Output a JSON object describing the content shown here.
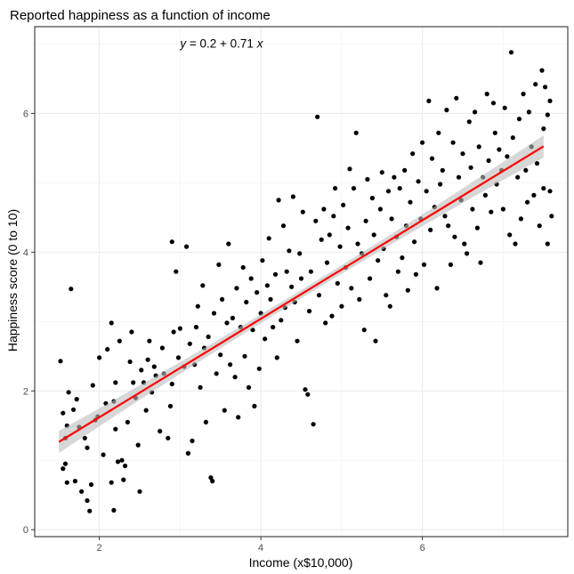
{
  "chart_data": {
    "type": "scatter",
    "title": "Reported happiness as a function of income",
    "xlabel": "Income (x$10,000)",
    "ylabel": "Happiness score (0 to 10)",
    "xlim": [
      1.2,
      7.8
    ],
    "ylim": [
      -0.1,
      7.25
    ],
    "x_ticks": [
      2,
      4,
      6
    ],
    "y_ticks": [
      0,
      2,
      4,
      6
    ],
    "x_tick_labels": [
      "2",
      "4",
      "6"
    ],
    "y_tick_labels": [
      "0",
      "2",
      "4",
      "6"
    ],
    "grid": true,
    "annotation": {
      "var_y": "y",
      "equals": " = 0.2 + 0.71 ",
      "var_x": "x",
      "x": 3.0,
      "y": 6.95
    },
    "regression": {
      "intercept": 0.2,
      "slope": 0.71,
      "x_range": [
        1.5,
        7.5
      ],
      "ci_halfwidth_ends": 0.16,
      "ci_halfwidth_center": 0.06,
      "line_color": "#ff0000",
      "band_color": "#bdbdbd"
    },
    "point_color": "#000000",
    "points": [
      [
        1.52,
        2.43
      ],
      [
        1.55,
        1.68
      ],
      [
        1.58,
        1.32
      ],
      [
        1.6,
        1.5
      ],
      [
        1.62,
        1.98
      ],
      [
        1.65,
        3.47
      ],
      [
        1.58,
        0.95
      ],
      [
        1.55,
        0.88
      ],
      [
        1.6,
        0.68
      ],
      [
        1.68,
        1.73
      ],
      [
        1.7,
        0.7
      ],
      [
        1.72,
        1.88
      ],
      [
        1.75,
        1.48
      ],
      [
        1.78,
        0.55
      ],
      [
        1.82,
        1.32
      ],
      [
        1.85,
        0.42
      ],
      [
        1.88,
        0.27
      ],
      [
        1.9,
        0.65
      ],
      [
        1.85,
        1.18
      ],
      [
        1.92,
        2.08
      ],
      [
        1.95,
        1.58
      ],
      [
        1.98,
        1.63
      ],
      [
        2.0,
        2.48
      ],
      [
        2.05,
        1.08
      ],
      [
        2.08,
        1.82
      ],
      [
        2.1,
        2.6
      ],
      [
        2.15,
        2.98
      ],
      [
        2.18,
        1.85
      ],
      [
        2.2,
        2.12
      ],
      [
        2.15,
        0.68
      ],
      [
        2.18,
        0.28
      ],
      [
        2.2,
        1.45
      ],
      [
        2.23,
        0.98
      ],
      [
        2.25,
        2.72
      ],
      [
        2.28,
        1.0
      ],
      [
        2.3,
        0.72
      ],
      [
        2.32,
        0.92
      ],
      [
        2.35,
        1.55
      ],
      [
        2.38,
        2.42
      ],
      [
        2.4,
        2.85
      ],
      [
        2.42,
        2.12
      ],
      [
        2.45,
        1.9
      ],
      [
        2.48,
        1.22
      ],
      [
        2.5,
        0.55
      ],
      [
        2.52,
        2.3
      ],
      [
        2.55,
        2.12
      ],
      [
        2.58,
        1.72
      ],
      [
        2.6,
        2.45
      ],
      [
        2.62,
        2.72
      ],
      [
        2.65,
        1.98
      ],
      [
        2.68,
        2.35
      ],
      [
        2.7,
        2.22
      ],
      [
        2.75,
        1.42
      ],
      [
        2.78,
        2.62
      ],
      [
        2.8,
        2.25
      ],
      [
        2.85,
        1.32
      ],
      [
        2.88,
        1.78
      ],
      [
        2.9,
        2.1
      ],
      [
        2.9,
        4.15
      ],
      [
        2.92,
        2.85
      ],
      [
        2.95,
        3.72
      ],
      [
        2.98,
        2.48
      ],
      [
        3.0,
        2.9
      ],
      [
        3.05,
        2.35
      ],
      [
        3.08,
        4.08
      ],
      [
        3.1,
        1.1
      ],
      [
        3.12,
        2.68
      ],
      [
        3.15,
        1.28
      ],
      [
        3.18,
        2.38
      ],
      [
        3.2,
        2.92
      ],
      [
        3.22,
        3.22
      ],
      [
        3.25,
        2.05
      ],
      [
        3.28,
        3.52
      ],
      [
        3.3,
        2.62
      ],
      [
        3.32,
        1.55
      ],
      [
        3.35,
        2.78
      ],
      [
        3.38,
        0.75
      ],
      [
        3.4,
        0.7
      ],
      [
        3.42,
        3.12
      ],
      [
        3.45,
        2.25
      ],
      [
        3.48,
        3.82
      ],
      [
        3.5,
        2.52
      ],
      [
        3.52,
        3.32
      ],
      [
        3.55,
        1.72
      ],
      [
        3.58,
        2.98
      ],
      [
        3.6,
        4.12
      ],
      [
        3.62,
        2.38
      ],
      [
        3.65,
        3.05
      ],
      [
        3.68,
        2.2
      ],
      [
        3.7,
        3.48
      ],
      [
        3.72,
        1.62
      ],
      [
        3.75,
        2.92
      ],
      [
        3.78,
        3.78
      ],
      [
        3.8,
        2.5
      ],
      [
        3.82,
        3.28
      ],
      [
        3.85,
        2.05
      ],
      [
        3.88,
        3.62
      ],
      [
        3.9,
        2.88
      ],
      [
        3.92,
        1.78
      ],
      [
        3.95,
        3.42
      ],
      [
        3.98,
        2.32
      ],
      [
        4.0,
        3.12
      ],
      [
        4.02,
        3.88
      ],
      [
        4.05,
        2.75
      ],
      [
        4.08,
        3.52
      ],
      [
        4.1,
        4.2
      ],
      [
        4.12,
        3.32
      ],
      [
        4.15,
        2.92
      ],
      [
        4.18,
        3.68
      ],
      [
        4.2,
        2.48
      ],
      [
        4.22,
        4.75
      ],
      [
        4.25,
        3.02
      ],
      [
        4.28,
        4.38
      ],
      [
        4.3,
        3.2
      ],
      [
        4.32,
        3.72
      ],
      [
        4.35,
        4.02
      ],
      [
        4.38,
        3.5
      ],
      [
        4.4,
        4.8
      ],
      [
        4.42,
        3.28
      ],
      [
        4.45,
        2.72
      ],
      [
        4.48,
        3.98
      ],
      [
        4.5,
        3.62
      ],
      [
        4.52,
        4.58
      ],
      [
        4.55,
        2.02
      ],
      [
        4.58,
        1.95
      ],
      [
        4.6,
        3.15
      ],
      [
        4.62,
        3.72
      ],
      [
        4.65,
        1.52
      ],
      [
        4.68,
        4.45
      ],
      [
        4.7,
        5.95
      ],
      [
        4.72,
        3.38
      ],
      [
        4.75,
        4.18
      ],
      [
        4.78,
        4.62
      ],
      [
        4.8,
        2.98
      ],
      [
        4.82,
        3.85
      ],
      [
        4.85,
        4.25
      ],
      [
        4.88,
        3.08
      ],
      [
        4.9,
        4.52
      ],
      [
        4.92,
        4.92
      ],
      [
        4.95,
        3.55
      ],
      [
        4.98,
        4.08
      ],
      [
        5.0,
        3.22
      ],
      [
        5.02,
        4.68
      ],
      [
        5.05,
        3.78
      ],
      [
        5.08,
        4.35
      ],
      [
        5.1,
        5.2
      ],
      [
        5.12,
        3.48
      ],
      [
        5.15,
        4.92
      ],
      [
        5.18,
        5.72
      ],
      [
        5.2,
        4.12
      ],
      [
        5.22,
        3.32
      ],
      [
        5.25,
        3.98
      ],
      [
        5.28,
        2.88
      ],
      [
        5.3,
        4.45
      ],
      [
        5.32,
        5.05
      ],
      [
        5.35,
        3.62
      ],
      [
        5.38,
        4.78
      ],
      [
        5.4,
        4.25
      ],
      [
        5.42,
        2.72
      ],
      [
        5.45,
        3.88
      ],
      [
        5.48,
        4.62
      ],
      [
        5.5,
        5.15
      ],
      [
        5.52,
        4.05
      ],
      [
        5.55,
        3.38
      ],
      [
        5.58,
        4.88
      ],
      [
        5.6,
        3.22
      ],
      [
        5.62,
        4.48
      ],
      [
        5.65,
        5.08
      ],
      [
        5.68,
        4.22
      ],
      [
        5.7,
        3.72
      ],
      [
        5.72,
        4.92
      ],
      [
        5.75,
        3.92
      ],
      [
        5.78,
        5.18
      ],
      [
        5.8,
        4.38
      ],
      [
        5.82,
        3.45
      ],
      [
        5.85,
        4.72
      ],
      [
        5.88,
        5.42
      ],
      [
        5.9,
        4.15
      ],
      [
        5.92,
        3.68
      ],
      [
        5.95,
        5.02
      ],
      [
        5.98,
        4.48
      ],
      [
        6.0,
        5.58
      ],
      [
        6.02,
        3.82
      ],
      [
        6.05,
        4.88
      ],
      [
        6.08,
        6.18
      ],
      [
        6.1,
        4.32
      ],
      [
        6.12,
        5.35
      ],
      [
        6.15,
        4.65
      ],
      [
        6.18,
        3.48
      ],
      [
        6.2,
        5.72
      ],
      [
        6.22,
        4.98
      ],
      [
        6.25,
        5.18
      ],
      [
        6.28,
        4.52
      ],
      [
        6.3,
        6.05
      ],
      [
        6.32,
        4.38
      ],
      [
        6.35,
        3.82
      ],
      [
        6.38,
        5.58
      ],
      [
        6.4,
        4.22
      ],
      [
        6.42,
        6.22
      ],
      [
        6.45,
        5.08
      ],
      [
        6.48,
        4.75
      ],
      [
        6.5,
        5.42
      ],
      [
        6.52,
        4.12
      ],
      [
        6.55,
        3.98
      ],
      [
        6.58,
        5.88
      ],
      [
        6.6,
        5.22
      ],
      [
        6.62,
        4.62
      ],
      [
        6.65,
        6.02
      ],
      [
        6.68,
        4.35
      ],
      [
        6.7,
        5.52
      ],
      [
        6.72,
        3.85
      ],
      [
        6.75,
        5.08
      ],
      [
        6.78,
        4.82
      ],
      [
        6.8,
        6.28
      ],
      [
        6.82,
        5.32
      ],
      [
        6.85,
        4.58
      ],
      [
        6.88,
        6.15
      ],
      [
        6.9,
        5.72
      ],
      [
        6.92,
        4.98
      ],
      [
        6.95,
        5.48
      ],
      [
        6.98,
        5.18
      ],
      [
        7.0,
        4.62
      ],
      [
        7.02,
        6.08
      ],
      [
        7.05,
        5.38
      ],
      [
        7.08,
        4.25
      ],
      [
        7.1,
        6.88
      ],
      [
        7.12,
        5.65
      ],
      [
        7.15,
        4.12
      ],
      [
        7.18,
        5.08
      ],
      [
        7.2,
        5.92
      ],
      [
        7.22,
        4.48
      ],
      [
        7.25,
        6.28
      ],
      [
        7.28,
        5.18
      ],
      [
        7.3,
        4.72
      ],
      [
        7.32,
        6.02
      ],
      [
        7.35,
        5.52
      ],
      [
        7.38,
        4.82
      ],
      [
        7.4,
        6.42
      ],
      [
        7.42,
        5.28
      ],
      [
        7.45,
        4.38
      ],
      [
        7.48,
        6.62
      ],
      [
        7.5,
        5.78
      ],
      [
        7.5,
        4.92
      ],
      [
        7.52,
        6.38
      ],
      [
        7.55,
        4.12
      ],
      [
        7.55,
        5.98
      ],
      [
        7.58,
        4.88
      ],
      [
        7.6,
        4.52
      ],
      [
        7.58,
        6.18
      ]
    ]
  }
}
